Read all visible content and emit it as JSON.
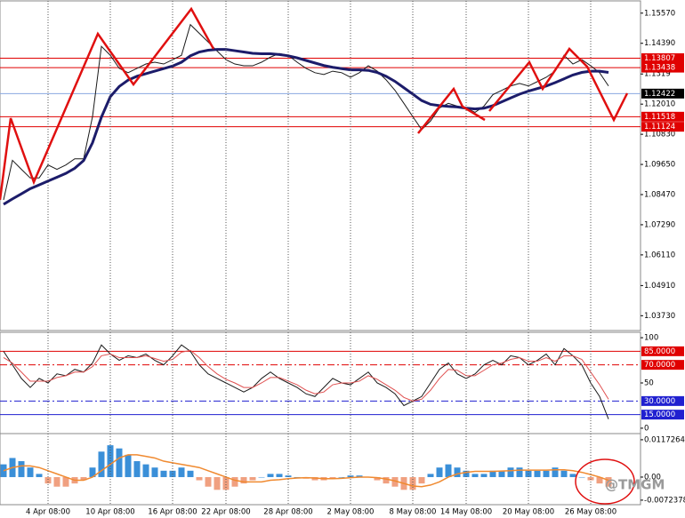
{
  "chart_data": [
    {
      "type": "line",
      "ylim": [
        1.0322,
        1.1598
      ],
      "yticks": [
        {
          "value": 1.1557,
          "label": "1.15570"
        },
        {
          "value": 1.1439,
          "label": "1.14390"
        },
        1.1319,
        {
          "value": 1.1201,
          "label": "1.12010"
        },
        {
          "value": 1.1083,
          "label": "1.10830"
        },
        {
          "value": 1.0965,
          "label": "1.09650"
        },
        {
          "value": 1.0847,
          "label": "1.08470"
        },
        {
          "value": 1.0729,
          "label": "1.07290"
        },
        {
          "value": 1.0611,
          "label": "1.06110"
        },
        {
          "value": 1.0491,
          "label": "1.04910"
        },
        {
          "value": 1.0373,
          "label": "1.03730"
        }
      ],
      "levels": [
        {
          "value": 1.13807,
          "color": "#e00000",
          "style": "solid"
        },
        {
          "value": 1.13438,
          "color": "#e00000",
          "style": "solid"
        },
        {
          "value": 1.12422,
          "color": "#8aa8e0",
          "style": "solid",
          "box": "#000000"
        },
        {
          "value": 1.11518,
          "color": "#e00000",
          "style": "solid"
        },
        {
          "value": 1.11124,
          "color": "#e00000",
          "style": "solid"
        }
      ],
      "series": [
        {
          "color": "#1a1a1a",
          "width": 1,
          "values": [
            1.0826,
            1.0981,
            1.0946,
            1.0912,
            1.0912,
            1.0963,
            1.0946,
            1.0963,
            1.0987,
            1.0987,
            1.1152,
            1.1427,
            1.1392,
            1.1341,
            1.1324,
            1.1341,
            1.1358,
            1.1365,
            1.1358,
            1.1375,
            1.1392,
            1.1512,
            1.1478,
            1.1444,
            1.1409,
            1.1375,
            1.1358,
            1.1351,
            1.1351,
            1.1365,
            1.1385,
            1.1399,
            1.1392,
            1.1365,
            1.1341,
            1.1324,
            1.1317,
            1.133,
            1.1324,
            1.1306,
            1.1324,
            1.1351,
            1.133,
            1.1296,
            1.1255,
            1.1204,
            1.1152,
            1.1101,
            1.1135,
            1.1186,
            1.1204,
            1.1193,
            1.1186,
            1.1169,
            1.1193,
            1.1238,
            1.1255,
            1.1272,
            1.1282,
            1.1272,
            1.1289,
            1.1306,
            1.133,
            1.1392,
            1.1358,
            1.1375,
            1.1351,
            1.1324,
            1.1272
          ]
        },
        {
          "color": "#1c1c6a",
          "width": 3,
          "values": [
            1.0809,
            1.083,
            1.085,
            1.087,
            1.0885,
            1.09,
            1.0915,
            1.093,
            1.095,
            1.098,
            1.105,
            1.115,
            1.123,
            1.127,
            1.1295,
            1.131,
            1.132,
            1.133,
            1.134,
            1.135,
            1.1365,
            1.139,
            1.1405,
            1.1412,
            1.1415,
            1.1415,
            1.141,
            1.1405,
            1.14,
            1.1398,
            1.1398,
            1.1395,
            1.139,
            1.1382,
            1.1372,
            1.1362,
            1.1352,
            1.1345,
            1.134,
            1.1335,
            1.1335,
            1.1333,
            1.1325,
            1.131,
            1.129,
            1.1265,
            1.124,
            1.1215,
            1.12,
            1.1195,
            1.1192,
            1.119,
            1.1185,
            1.1182,
            1.1185,
            1.1195,
            1.121,
            1.1225,
            1.124,
            1.1252,
            1.1262,
            1.1272,
            1.1285,
            1.13,
            1.1315,
            1.1325,
            1.133,
            1.133,
            1.1325
          ]
        }
      ]
    },
    {
      "type": "line",
      "ylim": [
        -4,
        104
      ],
      "yticks": [
        100,
        50,
        0
      ],
      "levels": [
        {
          "value": 85,
          "label": "85.0000",
          "color": "#e00000",
          "style": "solid"
        },
        {
          "value": 70,
          "label": "70.0000",
          "color": "#e00000",
          "style": "dashdot"
        },
        {
          "value": 30,
          "label": "30.0000",
          "color": "#2020d0",
          "style": "dashdot"
        },
        {
          "value": 15,
          "label": "15.0000",
          "color": "#2020d0",
          "style": "solid"
        }
      ],
      "series": [
        {
          "color": "#1a1a1a",
          "width": 1,
          "values": [
            85,
            70,
            55,
            45,
            55,
            50,
            60,
            58,
            65,
            62,
            72,
            92,
            82,
            75,
            80,
            78,
            82,
            75,
            70,
            80,
            92,
            85,
            70,
            60,
            55,
            50,
            45,
            40,
            45,
            55,
            62,
            55,
            50,
            45,
            38,
            35,
            45,
            55,
            50,
            48,
            55,
            62,
            50,
            45,
            38,
            25,
            30,
            35,
            50,
            65,
            72,
            60,
            55,
            60,
            70,
            75,
            70,
            80,
            78,
            70,
            75,
            82,
            70,
            88,
            80,
            70,
            50,
            35,
            10
          ]
        },
        {
          "color": "#e05050",
          "width": 1,
          "values": [
            78,
            72,
            62,
            52,
            52,
            52,
            56,
            58,
            62,
            62,
            68,
            80,
            82,
            78,
            78,
            78,
            80,
            77,
            74,
            76,
            84,
            86,
            78,
            68,
            60,
            54,
            50,
            45,
            45,
            50,
            56,
            56,
            52,
            48,
            42,
            38,
            40,
            48,
            50,
            50,
            52,
            58,
            54,
            48,
            42,
            34,
            30,
            32,
            42,
            55,
            65,
            64,
            58,
            58,
            64,
            70,
            72,
            76,
            78,
            74,
            74,
            78,
            74,
            80,
            80,
            76,
            62,
            48,
            32
          ]
        }
      ]
    },
    {
      "type": "bar",
      "ylim": [
        -0.0081,
        0.0131
      ],
      "yticks": [
        0.0117264,
        {
          "value": 0,
          "label": "0.00"
        },
        -0.0072378
      ],
      "categories": [
        null,
        null,
        null,
        null,
        null,
        "4 Apr 08:00",
        null,
        null,
        null,
        null,
        null,
        null,
        "10 Apr 08:00",
        null,
        null,
        null,
        null,
        null,
        null,
        "16 Apr 08:00",
        null,
        null,
        null,
        null,
        null,
        "22 Apr 08:00",
        null,
        null,
        null,
        null,
        null,
        null,
        "28 Apr 08:00",
        null,
        null,
        null,
        null,
        null,
        null,
        "2 May 08:00",
        null,
        null,
        null,
        null,
        null,
        null,
        "8 May 08:00",
        null,
        null,
        null,
        null,
        null,
        "14 May 08:00",
        null,
        null,
        null,
        null,
        null,
        null,
        "20 May 08:00",
        null,
        null,
        null,
        null,
        null,
        null,
        "26 May 08:00",
        null,
        null
      ],
      "series": [
        {
          "type": "bar",
          "color": "#3a8fd8",
          "negative_color": "#f0a080",
          "values": [
            0.004,
            0.006,
            0.005,
            0.003,
            0.001,
            -0.002,
            -0.003,
            -0.003,
            -0.002,
            -0.001,
            0.003,
            0.008,
            0.01,
            0.009,
            0.007,
            0.005,
            0.004,
            0.003,
            0.002,
            0.002,
            0.003,
            0.002,
            -0.001,
            -0.003,
            -0.004,
            -0.004,
            -0.003,
            -0.002,
            -0.001,
            0,
            0.001,
            0.001,
            0.0005,
            0,
            -0.0005,
            -0.001,
            -0.001,
            -0.0005,
            0,
            0.0005,
            0.0005,
            0,
            -0.001,
            -0.002,
            -0.003,
            -0.004,
            -0.004,
            -0.002,
            0.001,
            0.003,
            0.004,
            0.003,
            0.002,
            0.001,
            0.001,
            0.002,
            0.002,
            0.003,
            0.003,
            0.002,
            0.002,
            0.002,
            0.003,
            0.002,
            0.001,
            0,
            -0.001,
            -0.002,
            -0.003
          ]
        },
        {
          "type": "line",
          "color": "#f08a30",
          "width": 1.5,
          "values": [
            0.002,
            0.003,
            0.0035,
            0.0035,
            0.003,
            0.002,
            0.001,
            0,
            -0.001,
            -0.001,
            0,
            0.002,
            0.004,
            0.006,
            0.007,
            0.007,
            0.0065,
            0.006,
            0.005,
            0.0045,
            0.004,
            0.0035,
            0.003,
            0.002,
            0.001,
            0,
            -0.001,
            -0.0015,
            -0.0015,
            -0.0015,
            -0.001,
            -0.0008,
            -0.0005,
            -0.0003,
            -0.0002,
            -0.0003,
            -0.0005,
            -0.0005,
            -0.0004,
            -0.0002,
            0,
            0,
            -0.0002,
            -0.0006,
            -0.0012,
            -0.002,
            -0.0028,
            -0.003,
            -0.0025,
            -0.0015,
            0,
            0.001,
            0.0015,
            0.0018,
            0.0018,
            0.0018,
            0.0019,
            0.002,
            0.0022,
            0.0022,
            0.0022,
            0.0022,
            0.0023,
            0.0023,
            0.002,
            0.0015,
            0.0008,
            0,
            -0.001
          ]
        }
      ]
    }
  ],
  "watermark": "@TMGM"
}
